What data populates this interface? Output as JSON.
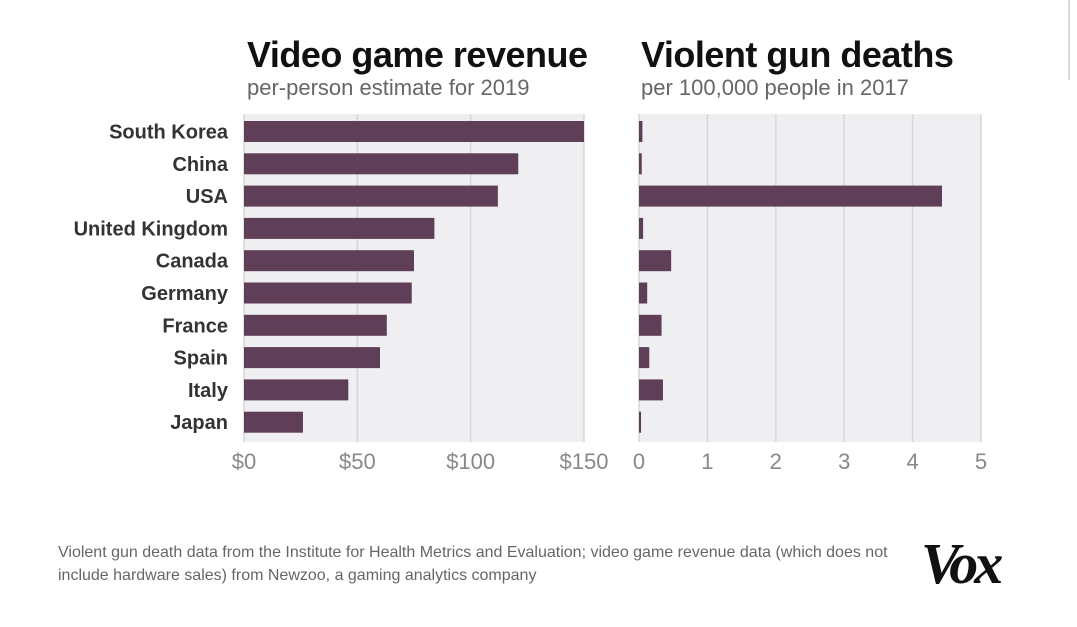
{
  "colors": {
    "bar": "#5e3f57",
    "panel_bg": "#efeef1",
    "gridline": "#d6d6dc",
    "tick_text": "#888888",
    "label_text": "#333333"
  },
  "chart_data": [
    {
      "type": "bar",
      "orientation": "horizontal",
      "title": "Video game revenue",
      "subtitle": "per-person estimate for 2019",
      "categories": [
        "South Korea",
        "China",
        "USA",
        "United Kingdom",
        "Canada",
        "Germany",
        "France",
        "Spain",
        "Italy",
        "Japan"
      ],
      "values": [
        150,
        121,
        112,
        84,
        75,
        74,
        63,
        60,
        46,
        26
      ],
      "xlim": [
        0,
        150
      ],
      "xticks": [
        0,
        50,
        100,
        150
      ],
      "xtick_labels": [
        "$0",
        "$50",
        "$100",
        "$150"
      ],
      "grid": true
    },
    {
      "type": "bar",
      "orientation": "horizontal",
      "title": "Violent gun deaths",
      "subtitle": "per 100,000 people in 2017",
      "categories": [
        "South Korea",
        "China",
        "USA",
        "United Kingdom",
        "Canada",
        "Germany",
        "France",
        "Spain",
        "Italy",
        "Japan"
      ],
      "values": [
        0.05,
        0.04,
        4.43,
        0.06,
        0.47,
        0.12,
        0.33,
        0.15,
        0.35,
        0.03
      ],
      "xlim": [
        0,
        5
      ],
      "xticks": [
        0,
        1,
        2,
        3,
        4,
        5
      ],
      "xtick_labels": [
        "0",
        "1",
        "2",
        "3",
        "4",
        "5"
      ],
      "grid": true
    }
  ],
  "footer": {
    "source_note": "Violent gun death data from the Institute for Health Metrics and Evaluation; video game revenue data (which does not include hardware sales) from Newzoo, a gaming analytics company"
  },
  "brand": {
    "logo_text": "Vox"
  }
}
